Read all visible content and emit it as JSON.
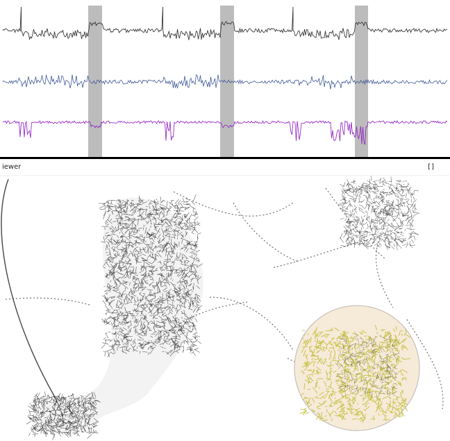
{
  "viewer": {
    "title": "iewer",
    "window_control": "[]"
  },
  "colors": {
    "trace_top": "#2f2f2f",
    "trace_middle": "#344f93",
    "trace_bottom": "#9424c4",
    "shaded_band": "#b8b8b8",
    "divider": "#000000",
    "trajectory": "#313131",
    "highlight_fill": "#f6ead9",
    "highlight_trace": "#c8c34b"
  },
  "icons": {
    "window_control": "maximize-icon"
  }
}
